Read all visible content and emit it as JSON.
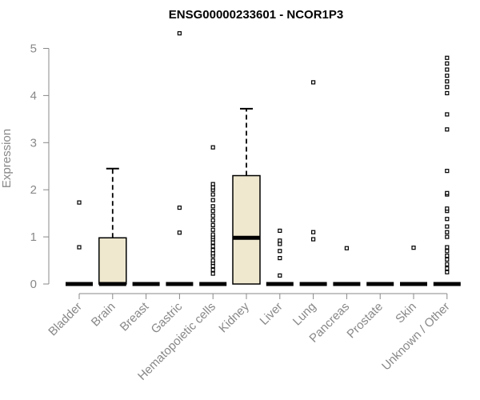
{
  "chart_data": {
    "type": "box",
    "title": "ENSG00000233601 - NCOR1P3",
    "xlabel": "",
    "ylabel": "Expression",
    "ylim": [
      0,
      5.2
    ],
    "yticks": [
      0,
      1,
      2,
      3,
      4,
      5
    ],
    "box_fill": "#efe8cf",
    "categories": [
      "Bladder",
      "Brain",
      "Breast",
      "Gastric",
      "Hematopoietic cells",
      "Kidney",
      "Liver",
      "Lung",
      "Pancreas",
      "Prostate",
      "Skin",
      "Unknown / Other"
    ],
    "boxes": [
      {
        "q1": 0,
        "median": 0,
        "q3": 0,
        "whisker_low": 0,
        "whisker_high": 0,
        "outliers": [
          0.78,
          1.73
        ]
      },
      {
        "q1": 0,
        "median": 0,
        "q3": 0.98,
        "whisker_low": 0,
        "whisker_high": 2.45,
        "outliers": []
      },
      {
        "q1": 0,
        "median": 0,
        "q3": 0,
        "whisker_low": 0,
        "whisker_high": 0,
        "outliers": []
      },
      {
        "q1": 0,
        "median": 0,
        "q3": 0,
        "whisker_low": 0,
        "whisker_high": 0,
        "outliers": [
          1.09,
          1.62,
          5.32
        ]
      },
      {
        "q1": 0,
        "median": 0,
        "q3": 0,
        "whisker_low": 0,
        "whisker_high": 0,
        "outliers": [
          0.22,
          0.3,
          0.38,
          0.45,
          0.5,
          0.6,
          0.65,
          0.72,
          0.8,
          0.88,
          0.95,
          1.0,
          1.05,
          1.15,
          1.25,
          1.35,
          1.45,
          1.55,
          1.65,
          1.78,
          1.9,
          2.0,
          2.05,
          2.12,
          2.9
        ]
      },
      {
        "q1": 0,
        "median": 0.98,
        "q3": 2.3,
        "whisker_low": 0,
        "whisker_high": 3.72,
        "outliers": []
      },
      {
        "q1": 0,
        "median": 0,
        "q3": 0,
        "whisker_low": 0,
        "whisker_high": 0,
        "outliers": [
          0.18,
          0.55,
          0.7,
          0.85,
          0.92,
          1.13
        ]
      },
      {
        "q1": 0,
        "median": 0,
        "q3": 0,
        "whisker_low": 0,
        "whisker_high": 0,
        "outliers": [
          0.95,
          1.1,
          4.28
        ]
      },
      {
        "q1": 0,
        "median": 0,
        "q3": 0,
        "whisker_low": 0,
        "whisker_high": 0,
        "outliers": [
          0.76
        ]
      },
      {
        "q1": 0,
        "median": 0,
        "q3": 0,
        "whisker_low": 0,
        "whisker_high": 0,
        "outliers": []
      },
      {
        "q1": 0,
        "median": 0,
        "q3": 0,
        "whisker_low": 0,
        "whisker_high": 0,
        "outliers": [
          0.77
        ]
      },
      {
        "q1": 0,
        "median": 0,
        "q3": 0,
        "whisker_low": 0,
        "whisker_high": 0,
        "outliers": [
          0.25,
          0.33,
          0.42,
          0.52,
          0.6,
          0.7,
          0.78,
          1.0,
          1.1,
          1.22,
          1.38,
          1.55,
          1.6,
          1.9,
          1.93,
          2.4,
          3.28,
          3.6,
          4.05,
          4.18,
          4.3,
          4.42,
          4.55,
          4.68,
          4.8
        ]
      }
    ]
  }
}
